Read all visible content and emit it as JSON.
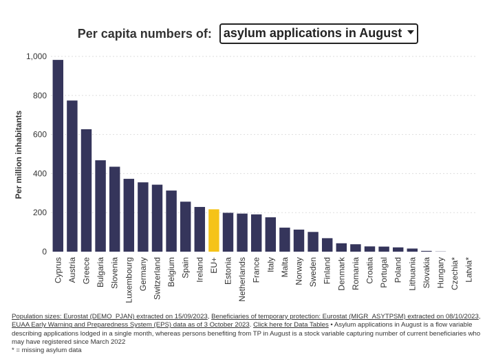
{
  "header": {
    "prefix": "Per capita numbers of:",
    "selected": "asylum applications in August"
  },
  "colors": {
    "bar": "#35355b",
    "highlight": "#f5c319",
    "grid": "#dddddd",
    "text": "#333333"
  },
  "chart_data": {
    "type": "bar",
    "categories": [
      "Cyprus",
      "Austria",
      "Greece",
      "Bulgaria",
      "Slovenia",
      "Luxembourg",
      "Germany",
      "Switzerland",
      "Belgium",
      "Spain",
      "Ireland",
      "EU+",
      "Estonia",
      "Netherlands",
      "France",
      "Italy",
      "Malta",
      "Norway",
      "Sweden",
      "Finland",
      "Denmark",
      "Romania",
      "Croatia",
      "Portugal",
      "Poland",
      "Lithuania",
      "Slovakia",
      "Hungary",
      "Czechia*",
      "Latvia*"
    ],
    "values": [
      982,
      774,
      627,
      468,
      435,
      373,
      355,
      343,
      313,
      256,
      229,
      217,
      199,
      195,
      191,
      176,
      123,
      113,
      101,
      69,
      43,
      38,
      27,
      26,
      22,
      16,
      4,
      1,
      0,
      0
    ],
    "highlight_category": "EU+",
    "ylabel": "Per million inhabitants",
    "ylim": [
      0,
      1000
    ],
    "yticks": [
      0,
      200,
      400,
      600,
      800,
      1000
    ],
    "ytick_labels": [
      "0",
      "200",
      "400",
      "600",
      "800",
      "1,000"
    ],
    "grid": true
  },
  "footer": {
    "link1": "Population sizes: Eurostat (DEMO_PJAN) extracted on 15/09/2023",
    "sep1": ", ",
    "link2": "Beneficiaries of temporary protection: Eurostat (MIGR_ASYTPSM) extracted on 08/10/2023",
    "sep2": ", ",
    "link3": "EUAA Early Warning and Preparedness System (EPS) data as of 3 October 2023",
    "sep3": ". ",
    "link4": "Click here for Data Tables",
    "text1": " • Asylum applications in August is a flow variable describing applications lodged in a single month, whereas persons benefiting from TP in August is a stock variable capturing number of current beneficiaries who may have registered since March 2022",
    "note": "* = missing asylum data"
  }
}
